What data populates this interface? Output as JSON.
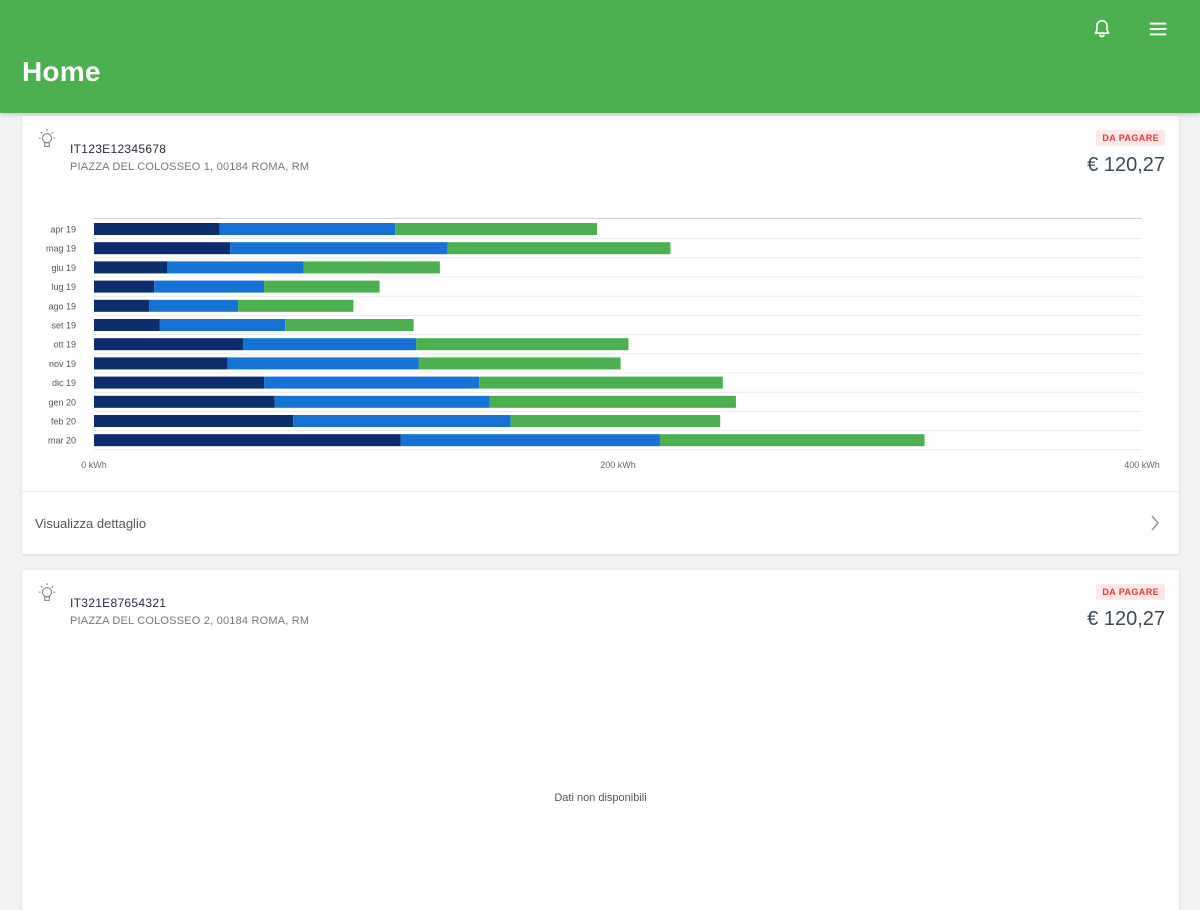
{
  "header": {
    "title": "Home",
    "icons": [
      "bell-icon",
      "menu-icon"
    ]
  },
  "colors": {
    "appbar": "#4caf50",
    "series1": "#0b2d6b",
    "series2": "#1473d4",
    "series3": "#4caf50",
    "badge_text": "#e53935",
    "badge_bg": "#fde7e7"
  },
  "cards": [
    {
      "pod": "IT123E12345678",
      "address": "PIAZZA DEL COLOSSEO 1, 00184 ROMA, RM",
      "status": "DA PAGARE",
      "amount": "€ 120,27",
      "detail_label": "Visualizza dettaglio",
      "chart_data": {
        "type": "bar",
        "orientation": "horizontal",
        "stacked": true,
        "categories": [
          "apr 19",
          "mag 19",
          "giu 19",
          "lug 19",
          "ago 19",
          "set 19",
          "ott 19",
          "nov 19",
          "dic 19",
          "gen 20",
          "feb 20",
          "mar 20"
        ],
        "series": [
          {
            "values": [
              48,
              52,
              28,
              23,
              21,
              25,
              57,
              51,
              65,
              69,
              76,
              117
            ]
          },
          {
            "values": [
              67,
              83,
              52,
              42,
              34,
              48,
              66,
              73,
              82,
              82,
              83,
              99
            ]
          },
          {
            "values": [
              77,
              85,
              52,
              44,
              44,
              49,
              81,
              77,
              93,
              94,
              80,
              101
            ]
          }
        ],
        "xlim": [
          0,
          400
        ],
        "xticks": [
          "0 kWh",
          "200 kWh",
          "400 kWh"
        ],
        "grid": true
      }
    },
    {
      "pod": "IT321E87654321",
      "address": "PIAZZA DEL COLOSSEO 2, 00184 ROMA, RM",
      "status": "DA PAGARE",
      "amount": "€ 120,27",
      "no_data": "Dati non disponibili"
    }
  ]
}
